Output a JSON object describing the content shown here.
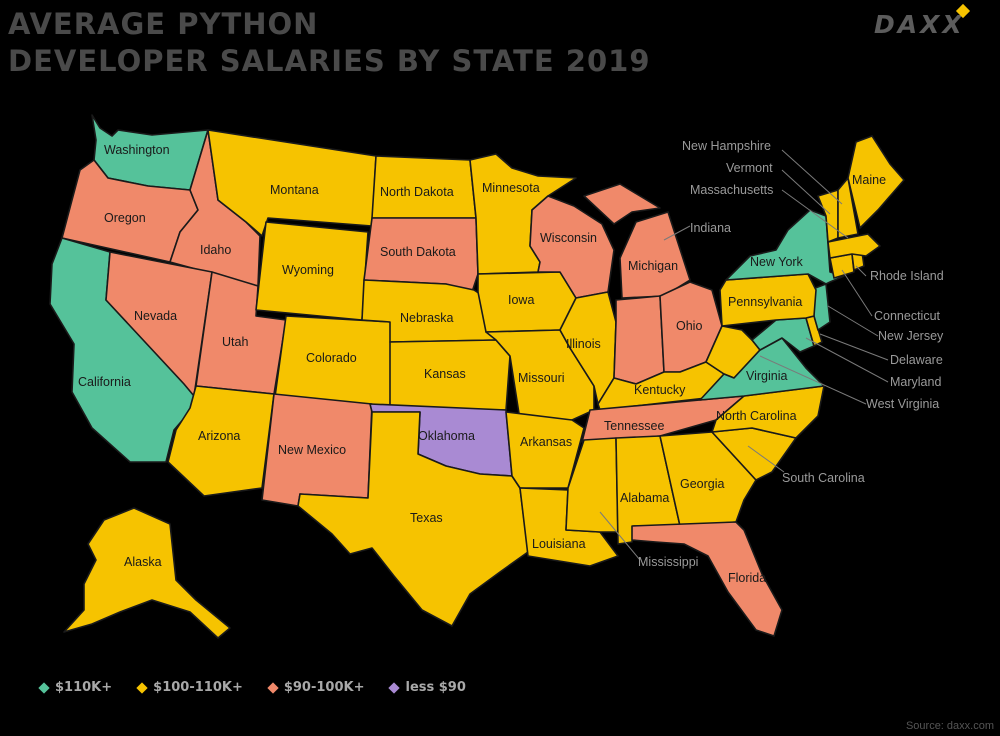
{
  "title": {
    "line1": "AVERAGE PYTHON",
    "line2": "DEVELOPER SALARIES BY STATE 2019"
  },
  "logo": {
    "text": "DAXX"
  },
  "source": "Source: daxx.com",
  "colors": {
    "c110": "#55c29a",
    "c100": "#f6c300",
    "c90": "#f0896a",
    "cless": "#a98ad3",
    "border": "#1a1a1a"
  },
  "legend": [
    {
      "label": "$110K+",
      "color": "#55c29a"
    },
    {
      "label": "$100-110K+",
      "color": "#f6c300"
    },
    {
      "label": "$90-100K+",
      "color": "#f0896a"
    },
    {
      "label": "less $90",
      "color": "#a98ad3"
    }
  ],
  "states": {
    "washington": {
      "name": "Washington",
      "tier": "$110K+"
    },
    "oregon": {
      "name": "Oregon",
      "tier": "$90-100K+"
    },
    "california": {
      "name": "California",
      "tier": "$110K+"
    },
    "idaho": {
      "name": "Idaho",
      "tier": "$90-100K+"
    },
    "nevada": {
      "name": "Nevada",
      "tier": "$90-100K+"
    },
    "utah": {
      "name": "Utah",
      "tier": "$90-100K+"
    },
    "arizona": {
      "name": "Arizona",
      "tier": "$100-110K+"
    },
    "montana": {
      "name": "Montana",
      "tier": "$100-110K+"
    },
    "wyoming": {
      "name": "Wyoming",
      "tier": "$100-110K+"
    },
    "colorado": {
      "name": "Colorado",
      "tier": "$100-110K+"
    },
    "new_mexico": {
      "name": "New Mexico",
      "tier": "$90-100K+"
    },
    "north_dakota": {
      "name": "North Dakota",
      "tier": "$100-110K+"
    },
    "south_dakota": {
      "name": "South Dakota",
      "tier": "$90-100K+"
    },
    "nebraska": {
      "name": "Nebraska",
      "tier": "$100-110K+"
    },
    "kansas": {
      "name": "Kansas",
      "tier": "$100-110K+"
    },
    "oklahoma": {
      "name": "Oklahoma",
      "tier": "less $90"
    },
    "texas": {
      "name": "Texas",
      "tier": "$100-110K+"
    },
    "minnesota": {
      "name": "Minnesota",
      "tier": "$100-110K+"
    },
    "iowa": {
      "name": "Iowa",
      "tier": "$100-110K+"
    },
    "missouri": {
      "name": "Missouri",
      "tier": "$100-110K+"
    },
    "arkansas": {
      "name": "Arkansas",
      "tier": "$100-110K+"
    },
    "louisiana": {
      "name": "Louisiana",
      "tier": "$100-110K+"
    },
    "wisconsin": {
      "name": "Wisconsin",
      "tier": "$90-100K+"
    },
    "illinois": {
      "name": "Illinois",
      "tier": "$100-110K+"
    },
    "michigan": {
      "name": "Michigan",
      "tier": "$90-100K+"
    },
    "indiana": {
      "name": "Indiana",
      "tier": "$90-100K+"
    },
    "ohio": {
      "name": "Ohio",
      "tier": "$90-100K+"
    },
    "kentucky": {
      "name": "Kentucky",
      "tier": "$100-110K+"
    },
    "tennessee": {
      "name": "Tennessee",
      "tier": "$90-100K+"
    },
    "mississippi": {
      "name": "Mississippi",
      "tier": "$100-110K+"
    },
    "alabama": {
      "name": "Alabama",
      "tier": "$100-110K+"
    },
    "georgia": {
      "name": "Georgia",
      "tier": "$100-110K+"
    },
    "florida": {
      "name": "Florida",
      "tier": "$90-100K+"
    },
    "south_carolina": {
      "name": "South Carolina",
      "tier": "$100-110K+"
    },
    "north_carolina": {
      "name": "North Carolina",
      "tier": "$100-110K+"
    },
    "virginia": {
      "name": "Virginia",
      "tier": "$110K+"
    },
    "west_virginia": {
      "name": "West Virginia",
      "tier": "$100-110K+"
    },
    "maryland": {
      "name": "Maryland",
      "tier": "$110K+"
    },
    "delaware": {
      "name": "Delaware",
      "tier": "$100-110K+"
    },
    "new_jersey": {
      "name": "New Jersey",
      "tier": "$110K+"
    },
    "pennsylvania": {
      "name": "Pennsylvania",
      "tier": "$100-110K+"
    },
    "new_york": {
      "name": "New York",
      "tier": "$110K+"
    },
    "connecticut": {
      "name": "Connecticut",
      "tier": "$100-110K+"
    },
    "rhode_island": {
      "name": "Rhode Island",
      "tier": "$100-110K+"
    },
    "massachusetts": {
      "name": "Massachusetts",
      "tier": "$100-110K+"
    },
    "vermont": {
      "name": "Vermont",
      "tier": "$100-110K+"
    },
    "new_hampshire": {
      "name": "New Hampshire",
      "tier": "$100-110K+"
    },
    "maine": {
      "name": "Maine",
      "tier": "$100-110K+"
    },
    "alaska": {
      "name": "Alaska",
      "tier": "$100-110K+"
    }
  }
}
